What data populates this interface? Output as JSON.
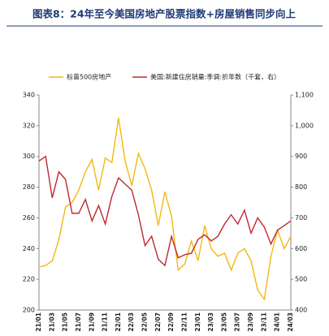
{
  "chart_data": {
    "type": "line",
    "title": "图表8：24年至今美国房地产股票指数+房屋销售同步向上",
    "categories": [
      "21/01",
      null,
      "21/03",
      null,
      "21/05",
      null,
      "21/07",
      null,
      "21/09",
      null,
      "21/11",
      null,
      "22/01",
      null,
      "22/03",
      null,
      "22/05",
      null,
      "22/07",
      null,
      "22/09",
      null,
      "22/11",
      null,
      "23/01",
      null,
      "23/03",
      null,
      "23/05",
      null,
      "23/07",
      null,
      "23/09",
      null,
      "23/11",
      null,
      "24/01",
      null,
      "24/03"
    ],
    "series": [
      {
        "name": "标普500房地产",
        "color": "#f2b90f",
        "values": [
          228,
          229,
          232,
          246,
          267,
          270,
          278,
          290,
          298,
          278,
          299,
          296,
          325,
          297,
          281,
          302,
          292,
          278,
          255,
          277,
          261,
          226,
          230,
          245,
          232,
          255,
          240,
          235,
          237,
          226,
          237,
          240,
          232,
          213,
          207,
          235,
          252,
          240,
          248
        ]
      },
      {
        "name": "美国:新建住房销量:季调:折年数（千套，右）",
        "color": "#c0282e",
        "axis": "y2",
        "values": [
          885,
          900,
          765,
          850,
          825,
          715,
          715,
          760,
          690,
          740,
          680,
          770,
          830,
          810,
          790,
          710,
          610,
          640,
          565,
          545,
          640,
          570,
          580,
          585,
          630,
          645,
          625,
          640,
          680,
          710,
          680,
          725,
          650,
          700,
          670,
          615,
          660,
          675,
          690
        ]
      }
    ],
    "ylim": [
      200,
      340
    ],
    "yticks": [
      200,
      220,
      240,
      260,
      280,
      300,
      320,
      340
    ],
    "y2lim": [
      400,
      1100
    ],
    "y2ticks": [
      400,
      500,
      600,
      700,
      800,
      900,
      {
        "value": 1000,
        "label": "1,000"
      },
      {
        "value": 1100,
        "label": "1,100"
      }
    ],
    "legend": "top"
  }
}
